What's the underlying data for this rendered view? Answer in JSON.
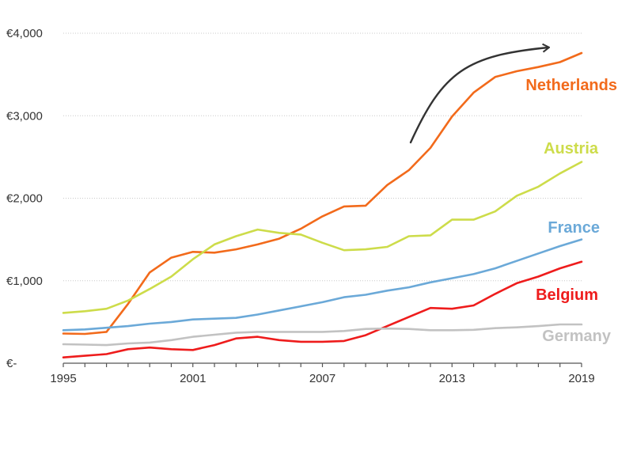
{
  "chart_data": {
    "type": "line",
    "title": "",
    "xlabel": "",
    "ylabel": "",
    "x": [
      1995,
      1996,
      1997,
      1998,
      1999,
      2000,
      2001,
      2002,
      2003,
      2004,
      2005,
      2006,
      2007,
      2008,
      2009,
      2010,
      2011,
      2012,
      2013,
      2014,
      2015,
      2016,
      2017,
      2018,
      2019
    ],
    "xlim": [
      1995,
      2019
    ],
    "ylim": [
      0,
      4000
    ],
    "x_ticks": [
      1995,
      2001,
      2007,
      2013,
      2019
    ],
    "x_tick_labels": [
      "1995",
      "2001",
      "2007",
      "2013",
      "2019"
    ],
    "y_ticks": [
      0,
      1000,
      2000,
      3000,
      4000
    ],
    "y_tick_labels": [
      "€-",
      "€1,000",
      "€2,000",
      "€3,000",
      "€4,000"
    ],
    "grid": "horizontal",
    "legend": "inline labels at line ends",
    "series": [
      {
        "name": "Netherlands",
        "color": "#f26a1b",
        "values": [
          360,
          355,
          380,
          720,
          1100,
          1280,
          1350,
          1340,
          1380,
          1440,
          1510,
          1630,
          1780,
          1900,
          1910,
          2160,
          2340,
          2610,
          2990,
          3280,
          3470,
          3540,
          3590,
          3650,
          3760
        ]
      },
      {
        "name": "Austria",
        "color": "#cddc4a",
        "values": [
          610,
          630,
          660,
          760,
          900,
          1050,
          1260,
          1440,
          1540,
          1620,
          1580,
          1560,
          1460,
          1370,
          1380,
          1410,
          1540,
          1550,
          1740,
          1740,
          1840,
          2030,
          2140,
          2300,
          2440
        ]
      },
      {
        "name": "France",
        "color": "#6ba9d8",
        "values": [
          400,
          410,
          430,
          450,
          480,
          500,
          530,
          540,
          550,
          590,
          640,
          690,
          740,
          800,
          830,
          880,
          920,
          980,
          1030,
          1080,
          1150,
          1240,
          1330,
          1420,
          1500
        ]
      },
      {
        "name": "Belgium",
        "color": "#ee1c1c",
        "values": [
          70,
          90,
          110,
          170,
          190,
          170,
          160,
          220,
          300,
          320,
          280,
          260,
          260,
          270,
          340,
          450,
          560,
          670,
          660,
          700,
          840,
          970,
          1050,
          1150,
          1230
        ]
      },
      {
        "name": "Germany",
        "color": "#c2c2c2",
        "values": [
          230,
          225,
          220,
          240,
          250,
          280,
          320,
          345,
          370,
          380,
          380,
          380,
          380,
          390,
          415,
          420,
          415,
          400,
          400,
          405,
          425,
          435,
          450,
          470,
          470
        ]
      }
    ]
  }
}
